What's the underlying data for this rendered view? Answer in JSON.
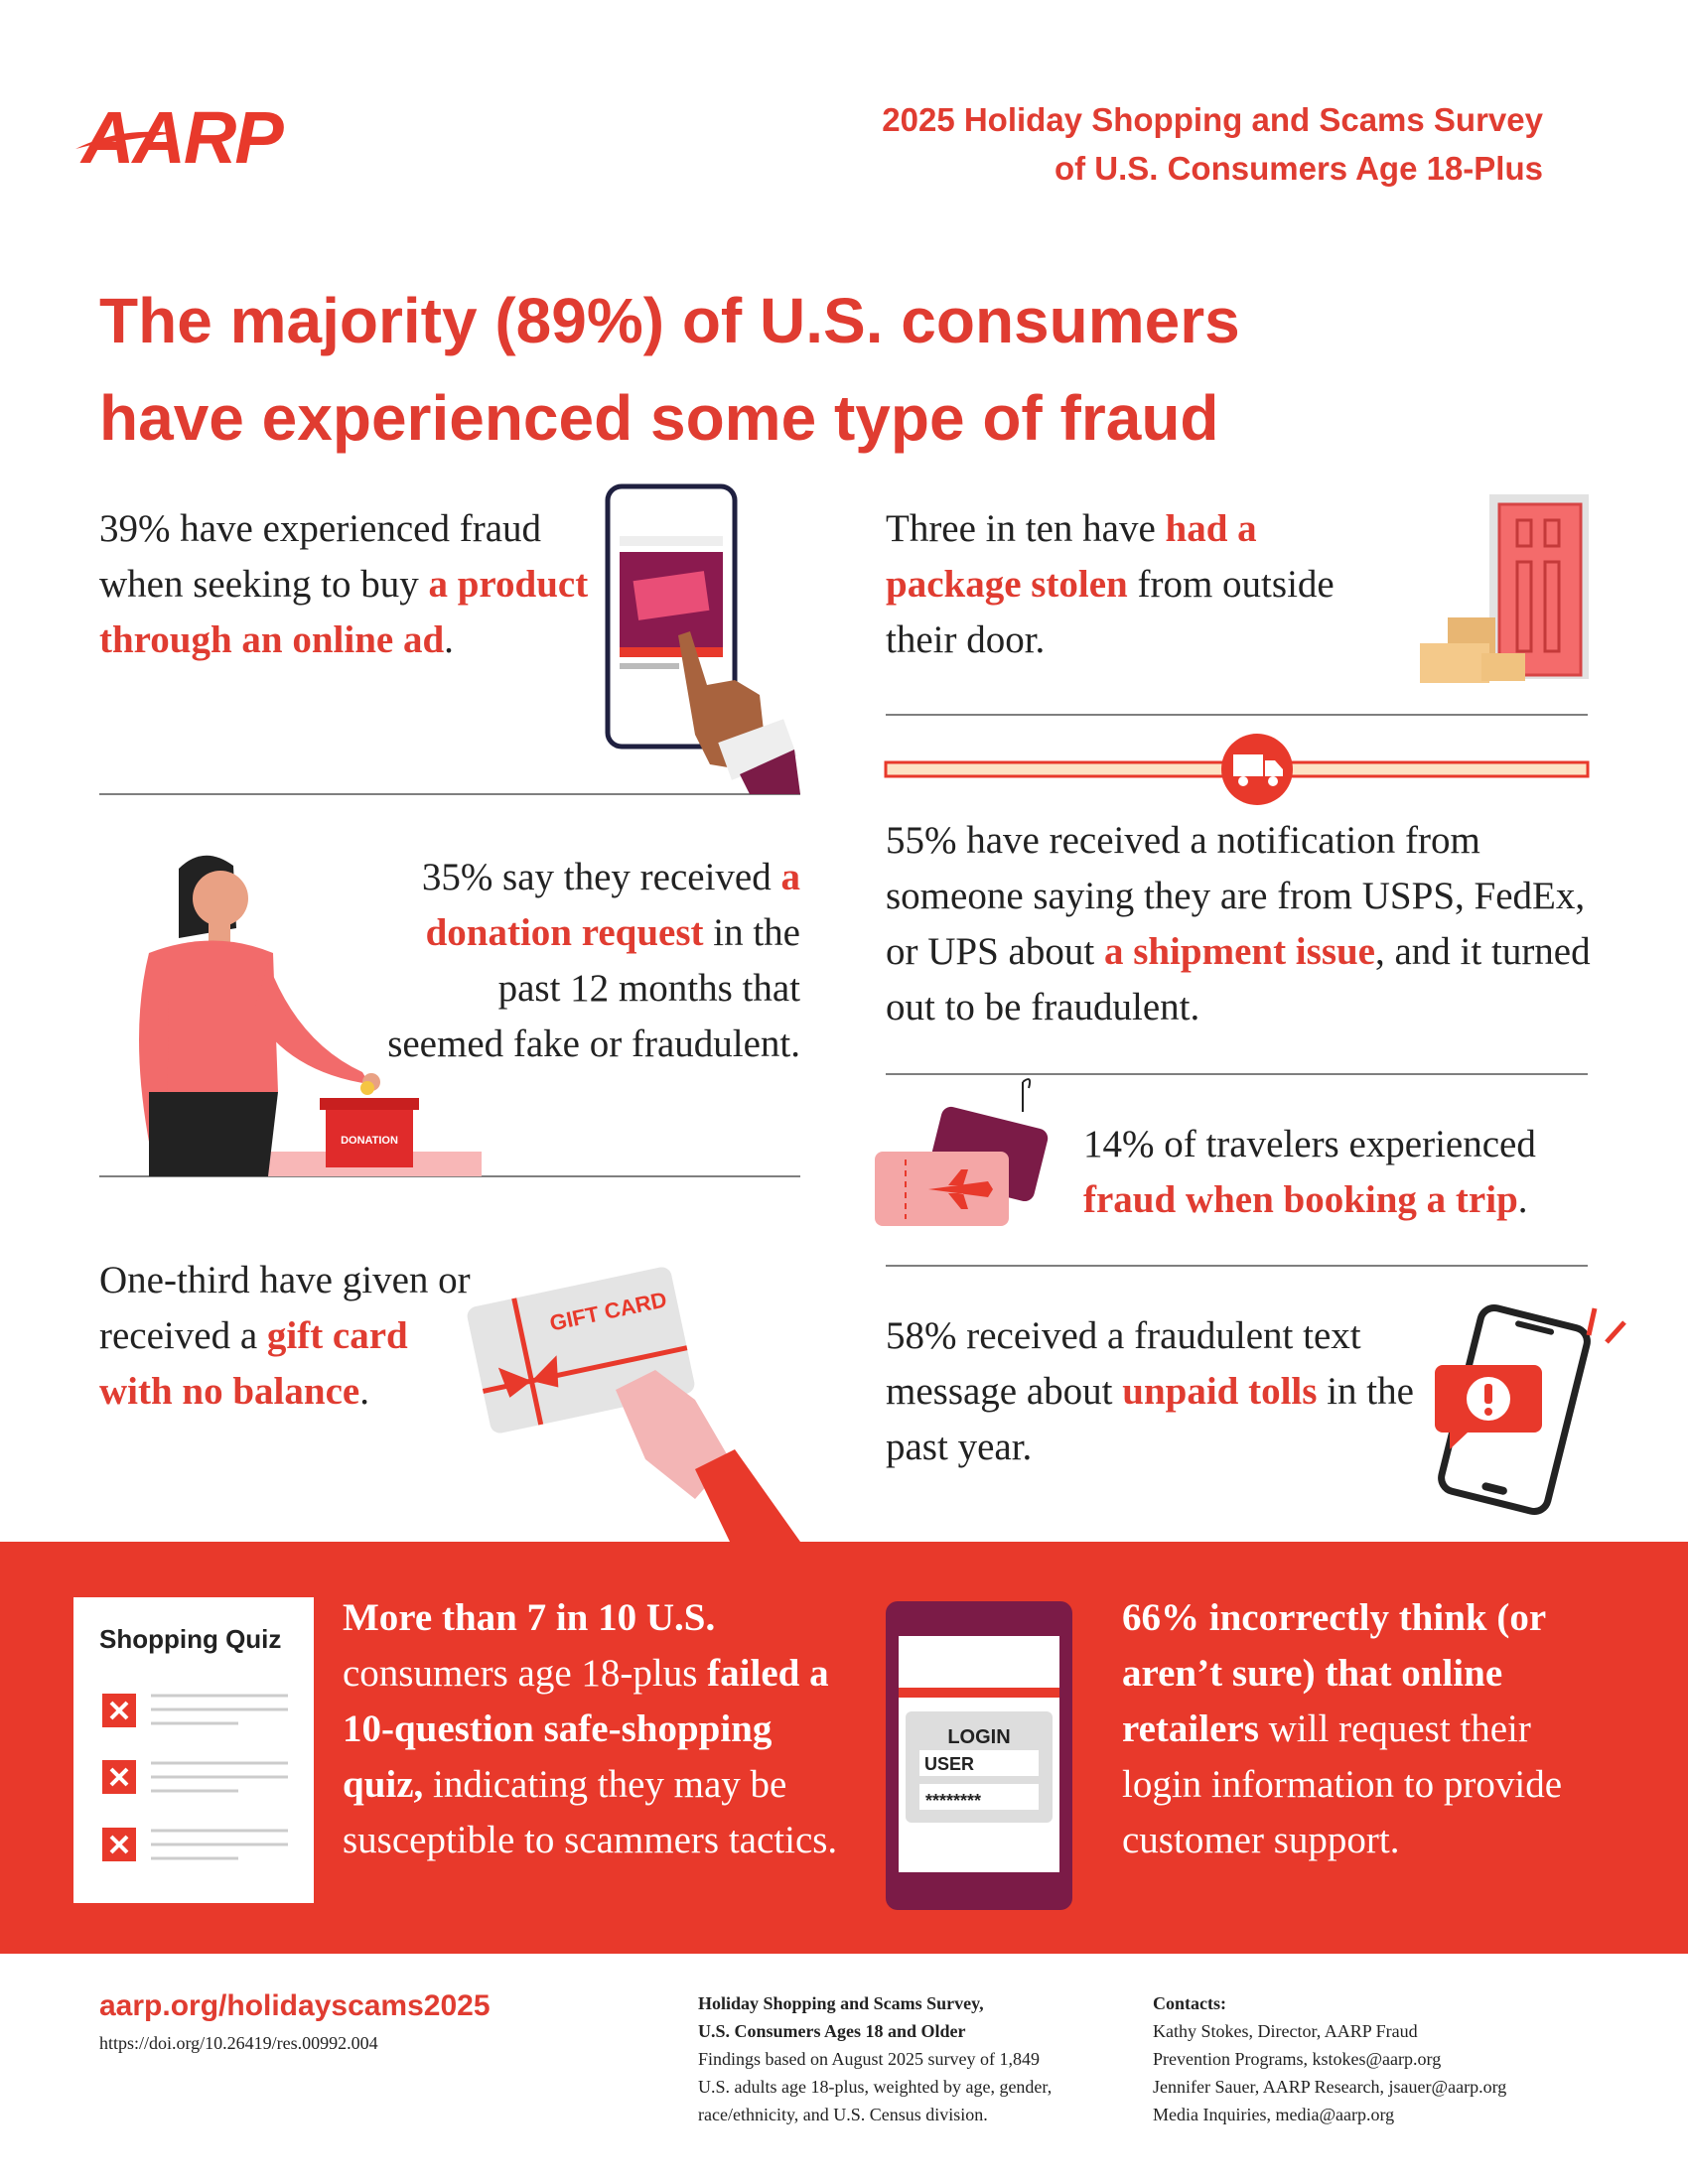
{
  "header": {
    "logo": "AARP",
    "survey_title": [
      "2025 Holiday Shopping and Scams Survey",
      "of U.S. Consumers Age 18-Plus"
    ]
  },
  "headline": [
    "The majority (89%) of U.S. consumers",
    "have experienced some type of fraud"
  ],
  "stats": [
    {
      "segments": [
        {
          "text": "39% have experienced fraud when seeking to buy"
        },
        {
          "text": "a product through an online ad",
          "emphasis": true
        },
        {
          "text": "."
        }
      ]
    },
    {
      "segments": [
        {
          "text": "35% say they received"
        },
        {
          "text": "a donation request",
          "emphasis": true
        },
        {
          "text": "in the past 12 months that seemed fake or fraudulent."
        }
      ]
    },
    {
      "segments": [
        {
          "text": "One-third have given or received a"
        },
        {
          "text": "gift card with no balance",
          "emphasis": true
        },
        {
          "text": "."
        }
      ]
    },
    {
      "segments": [
        {
          "text": "Three in ten have"
        },
        {
          "text": "had a package stolen",
          "emphasis": true
        },
        {
          "text": "from outside their door."
        }
      ]
    },
    {
      "segments": [
        {
          "text": "55% have received a notification from someone saying they are from USPS, FedEx, or UPS about"
        },
        {
          "text": "a shipment issue",
          "emphasis": true
        },
        {
          "text": ", and it turned out to be fraudulent."
        }
      ]
    },
    {
      "segments": [
        {
          "text": "14% of travelers experienced"
        },
        {
          "text": "fraud when booking a trip",
          "emphasis": true
        },
        {
          "text": "."
        }
      ]
    },
    {
      "segments": [
        {
          "text": "58% received a fraudulent text message about"
        },
        {
          "text": "unpaid tolls",
          "emphasis": true
        },
        {
          "text": "in the past year."
        }
      ]
    }
  ],
  "illustrations": {
    "donation_box": "DONATION",
    "gift_card": "GIFT CARD",
    "quiz_title": "Shopping Quiz",
    "login": {
      "title": "LOGIN",
      "user": "USER",
      "password": "********"
    }
  },
  "band": [
    {
      "segments": [
        {
          "text": "More than 7 in 10 U.S.",
          "emphasis": true
        },
        {
          "text": "consumers age 18-plus"
        },
        {
          "text": "failed a 10-question safe-shopping quiz,",
          "emphasis": true
        },
        {
          "text": "indicating they may be susceptible to scammers tactics."
        }
      ]
    },
    {
      "segments": [
        {
          "text": "66% incorrectly think (or aren’t sure) that online retailers",
          "emphasis": true
        },
        {
          "text": "will request their login information to provide customer support."
        }
      ]
    }
  ],
  "footer": {
    "url": "aarp.org/holidayscams2025",
    "doi": "https://doi.org/10.26419/res.00992.004",
    "survey": {
      "title": [
        "Holiday Shopping and Scams Survey,",
        "U.S. Consumers Ages 18 and Older"
      ],
      "details": [
        "Findings based on August 2025 survey of 1,849",
        "U.S. adults age 18-plus, weighted by age, gender,",
        "race/ethnicity, and U.S. Census division."
      ]
    },
    "contacts": {
      "heading": "Contacts:",
      "lines": [
        "Kathy Stokes, Director, AARP Fraud",
        "Prevention Programs, kstokes@aarp.org",
        "Jennifer Sauer, AARP Research, jsauer@aarp.org",
        "Media Inquiries, media@aarp.org"
      ]
    }
  }
}
